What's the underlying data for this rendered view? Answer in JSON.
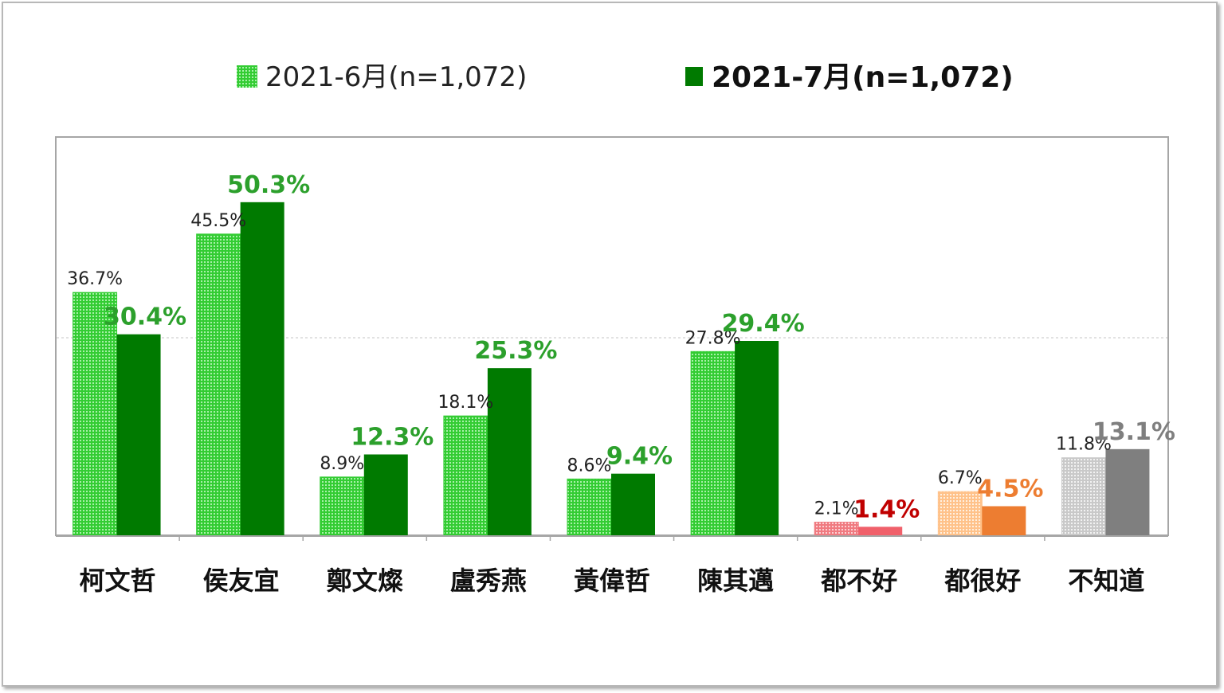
{
  "chart_data": {
    "type": "bar",
    "categories": [
      "柯文哲",
      "侯友宜",
      "鄭文燦",
      "盧秀燕",
      "黃偉哲",
      "陳其邁",
      "都不好",
      "都很好",
      "不知道"
    ],
    "series": [
      {
        "name": "2021-6月(n=1,072)",
        "values": [
          36.7,
          45.5,
          8.9,
          18.1,
          8.6,
          27.8,
          2.1,
          6.7,
          11.8
        ]
      },
      {
        "name": "2021-7月(n=1,072)",
        "values": [
          30.4,
          50.3,
          12.3,
          25.3,
          9.4,
          29.4,
          1.4,
          4.5,
          13.1
        ]
      }
    ],
    "data_labels": {
      "jun": [
        "36.7%",
        "45.5%",
        "8.9%",
        "18.1%",
        "8.6%",
        "27.8%",
        "2.1%",
        "6.7%",
        "11.8%"
      ],
      "jul": [
        "30.4%",
        "50.3%",
        "12.3%",
        "25.3%",
        "9.4%",
        "29.4%",
        "1.4%",
        "4.5%",
        "13.1%"
      ]
    },
    "ylim": [
      0,
      60
    ],
    "grid": "single dashed line at 30",
    "legend_position": "top",
    "colors": {
      "jun": [
        "#33cc33",
        "#33cc33",
        "#33cc33",
        "#33cc33",
        "#33cc33",
        "#33cc33",
        "#f07a80",
        "#ffc28a",
        "#c9c9c9"
      ],
      "jul": [
        "#007a00",
        "#007a00",
        "#007a00",
        "#007a00",
        "#007a00",
        "#007a00",
        "#f0606a",
        "#ed7d31",
        "#7f7f7f"
      ],
      "jul_label": [
        "#2ca02c",
        "#2ca02c",
        "#2ca02c",
        "#2ca02c",
        "#2ca02c",
        "#2ca02c",
        "#c00000",
        "#ed7d31",
        "#7f7f7f"
      ],
      "legend_jun": "#33cc33",
      "legend_jul": "#007a00"
    }
  }
}
